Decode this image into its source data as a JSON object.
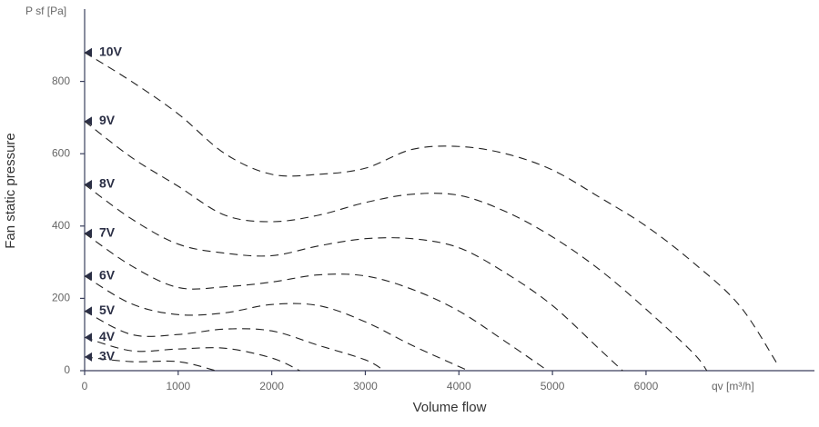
{
  "chart_data": {
    "type": "line",
    "y_axis_unit": "P sf [Pa]",
    "x_axis_unit": "qv [m³/h]",
    "ylabel": "Fan static pressure",
    "xlabel": "Volume flow",
    "xlim": [
      0,
      7800
    ],
    "ylim": [
      0,
      1000
    ],
    "xticks": [
      0,
      1000,
      2000,
      3000,
      4000,
      5000,
      6000
    ],
    "yticks": [
      0,
      200,
      400,
      600,
      800
    ],
    "series": [
      {
        "name": "10V",
        "color": "#222222",
        "x": [
          0,
          500,
          1000,
          1500,
          2000,
          2500,
          3000,
          3500,
          4000,
          4500,
          5000,
          5500,
          6000,
          6500,
          7000,
          7400
        ],
        "values": [
          880,
          800,
          710,
          600,
          543,
          543,
          560,
          612,
          620,
          600,
          555,
          480,
          400,
          300,
          180,
          20
        ]
      },
      {
        "name": "9V",
        "color": "#222222",
        "x": [
          0,
          500,
          1000,
          1500,
          2000,
          2500,
          3000,
          3500,
          4000,
          4500,
          5000,
          5500,
          6000,
          6500,
          6650
        ],
        "values": [
          690,
          590,
          510,
          430,
          412,
          430,
          465,
          488,
          485,
          440,
          370,
          280,
          170,
          50,
          0
        ]
      },
      {
        "name": "8V",
        "color": "#222222",
        "x": [
          0,
          500,
          1000,
          1500,
          2000,
          2500,
          3000,
          3500,
          4000,
          4500,
          5000,
          5500,
          5750
        ],
        "values": [
          515,
          420,
          350,
          325,
          318,
          345,
          365,
          365,
          340,
          270,
          180,
          60,
          0
        ]
      },
      {
        "name": "7V",
        "color": "#222222",
        "x": [
          0,
          500,
          1000,
          1500,
          2000,
          2500,
          3000,
          3500,
          4000,
          4500,
          4950
        ],
        "values": [
          380,
          290,
          230,
          232,
          245,
          265,
          262,
          225,
          165,
          80,
          0
        ]
      },
      {
        "name": "6V",
        "color": "#222222",
        "x": [
          0,
          500,
          1000,
          1500,
          2000,
          2500,
          3000,
          3500,
          4100
        ],
        "values": [
          262,
          185,
          155,
          160,
          183,
          180,
          135,
          70,
          0
        ]
      },
      {
        "name": "5V",
        "color": "#222222",
        "x": [
          0,
          500,
          1000,
          1500,
          2000,
          2500,
          3000,
          3200
        ],
        "values": [
          165,
          100,
          100,
          115,
          110,
          70,
          30,
          0
        ]
      },
      {
        "name": "4V",
        "color": "#222222",
        "x": [
          0,
          500,
          1000,
          1500,
          2000,
          2300
        ],
        "values": [
          92,
          55,
          60,
          62,
          35,
          0
        ]
      },
      {
        "name": "3V",
        "color": "#222222",
        "x": [
          0,
          500,
          1000,
          1400
        ],
        "values": [
          38,
          25,
          25,
          0
        ]
      }
    ]
  }
}
